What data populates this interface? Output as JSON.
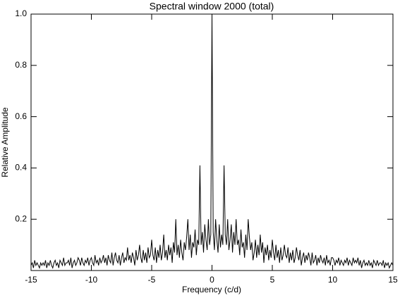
{
  "chart_data": {
    "type": "line",
    "title": "Spectral window 2000 (total)",
    "xlabel": "Frequency (c/d)",
    "ylabel": "Relative Amplitude",
    "color": "#000000",
    "xlim": [
      -15,
      15
    ],
    "ylim": [
      0,
      1
    ],
    "xticks": [
      -15,
      -10,
      -5,
      0,
      5,
      10,
      15
    ],
    "yticks": [
      0.2,
      0.4,
      0.6,
      0.8,
      {
        "value": 1,
        "label": "1.0"
      }
    ],
    "x": [
      -15,
      -14.9,
      -14.8,
      -14.7,
      -14.6,
      -14.5,
      -14.4,
      -14.3,
      -14.2,
      -14.1,
      -14,
      -13.9,
      -13.8,
      -13.7,
      -13.6,
      -13.5,
      -13.4,
      -13.3,
      -13.2,
      -13.1,
      -13,
      -12.9,
      -12.8,
      -12.7,
      -12.6,
      -12.5,
      -12.4,
      -12.3,
      -12.2,
      -12.1,
      -12,
      -11.9,
      -11.8,
      -11.7,
      -11.6,
      -11.5,
      -11.4,
      -11.3,
      -11.2,
      -11.1,
      -11,
      -10.9,
      -10.8,
      -10.7,
      -10.6,
      -10.5,
      -10.4,
      -10.3,
      -10.2,
      -10.1,
      -10,
      -9.9,
      -9.8,
      -9.7,
      -9.6,
      -9.5,
      -9.4,
      -9.3,
      -9.2,
      -9.1,
      -9,
      -8.9,
      -8.8,
      -8.7,
      -8.6,
      -8.5,
      -8.4,
      -8.3,
      -8.2,
      -8.1,
      -8,
      -7.9,
      -7.8,
      -7.7,
      -7.6,
      -7.5,
      -7.4,
      -7.3,
      -7.2,
      -7.1,
      -7,
      -6.9,
      -6.8,
      -6.7,
      -6.6,
      -6.5,
      -6.4,
      -6.3,
      -6.2,
      -6.1,
      -6,
      -5.9,
      -5.8,
      -5.7,
      -5.6,
      -5.5,
      -5.4,
      -5.3,
      -5.2,
      -5.1,
      -5,
      -4.9,
      -4.8,
      -4.7,
      -4.6,
      -4.5,
      -4.4,
      -4.3,
      -4.2,
      -4.1,
      -4,
      -3.9,
      -3.8,
      -3.7,
      -3.6,
      -3.5,
      -3.4,
      -3.3,
      -3.2,
      -3.1,
      -3,
      -2.9,
      -2.8,
      -2.7,
      -2.6,
      -2.5,
      -2.4,
      -2.3,
      -2.2,
      -2.1,
      -2,
      -1.9,
      -1.8,
      -1.7,
      -1.6,
      -1.5,
      -1.4,
      -1.3,
      -1.2,
      -1.1,
      -1,
      -0.9,
      -0.8,
      -0.7,
      -0.6,
      -0.5,
      -0.4,
      -0.3,
      -0.2,
      -0.1,
      0,
      0.1,
      0.2,
      0.3,
      0.4,
      0.5,
      0.6,
      0.7,
      0.8,
      0.9,
      1,
      1.1,
      1.2,
      1.3,
      1.4,
      1.5,
      1.6,
      1.7,
      1.8,
      1.9,
      2,
      2.1,
      2.2,
      2.3,
      2.4,
      2.5,
      2.6,
      2.7,
      2.8,
      2.9,
      3,
      3.1,
      3.2,
      3.3,
      3.4,
      3.5,
      3.6,
      3.7,
      3.8,
      3.9,
      4,
      4.1,
      4.2,
      4.3,
      4.4,
      4.5,
      4.6,
      4.7,
      4.8,
      4.9,
      5,
      5.1,
      5.2,
      5.3,
      5.4,
      5.5,
      5.6,
      5.7,
      5.8,
      5.9,
      6,
      6.1,
      6.2,
      6.3,
      6.4,
      6.5,
      6.6,
      6.7,
      6.8,
      6.9,
      7,
      7.1,
      7.2,
      7.3,
      7.4,
      7.5,
      7.6,
      7.7,
      7.8,
      7.9,
      8,
      8.1,
      8.2,
      8.3,
      8.4,
      8.5,
      8.6,
      8.7,
      8.8,
      8.9,
      9,
      9.1,
      9.2,
      9.3,
      9.4,
      9.5,
      9.6,
      9.7,
      9.8,
      9.9,
      10,
      10.1,
      10.2,
      10.3,
      10.4,
      10.5,
      10.6,
      10.7,
      10.8,
      10.9,
      11,
      11.1,
      11.2,
      11.3,
      11.4,
      11.5,
      11.6,
      11.7,
      11.8,
      11.9,
      12,
      12.1,
      12.2,
      12.3,
      12.4,
      12.5,
      12.6,
      12.7,
      12.8,
      12.9,
      13,
      13.1,
      13.2,
      13.3,
      13.4,
      13.5,
      13.6,
      13.7,
      13.8,
      13.9,
      14,
      14.1,
      14.2,
      14.3,
      14.4,
      14.5,
      14.6,
      14.7,
      14.8,
      14.9,
      15
    ],
    "values": [
      0.02,
      0.03,
      0.01,
      0.04,
      0.02,
      0.03,
      0.02,
      0.01,
      0.03,
      0.02,
      0.03,
      0.02,
      0.04,
      0.01,
      0.03,
      0.02,
      0.04,
      0.02,
      0.01,
      0.03,
      0.04,
      0.02,
      0.03,
      0.01,
      0.04,
      0.03,
      0.02,
      0.05,
      0.02,
      0.03,
      0.03,
      0.04,
      0.02,
      0.05,
      0.01,
      0.03,
      0.04,
      0.02,
      0.03,
      0.05,
      0.04,
      0.02,
      0.05,
      0.03,
      0.02,
      0.04,
      0.03,
      0.05,
      0.02,
      0.04,
      0.05,
      0.03,
      0.02,
      0.06,
      0.03,
      0.04,
      0.02,
      0.05,
      0.03,
      0.04,
      0.06,
      0.03,
      0.05,
      0.02,
      0.06,
      0.04,
      0.03,
      0.07,
      0.02,
      0.05,
      0.07,
      0.04,
      0.03,
      0.06,
      0.02,
      0.05,
      0.07,
      0.03,
      0.05,
      0.04,
      0.09,
      0.04,
      0.06,
      0.03,
      0.07,
      0.05,
      0.02,
      0.08,
      0.04,
      0.06,
      0.1,
      0.05,
      0.03,
      0.08,
      0.04,
      0.07,
      0.03,
      0.09,
      0.05,
      0.06,
      0.12,
      0.06,
      0.04,
      0.09,
      0.03,
      0.08,
      0.05,
      0.1,
      0.04,
      0.07,
      0.14,
      0.05,
      0.08,
      0.04,
      0.1,
      0.06,
      0.09,
      0.03,
      0.11,
      0.07,
      0.2,
      0.06,
      0.1,
      0.05,
      0.12,
      0.07,
      0.04,
      0.11,
      0.08,
      0.13,
      0.2,
      0.08,
      0.14,
      0.05,
      0.11,
      0.09,
      0.16,
      0.06,
      0.12,
      0.1,
      0.41,
      0.1,
      0.15,
      0.07,
      0.18,
      0.12,
      0.08,
      0.2,
      0.1,
      0.14,
      1,
      0.15,
      0.08,
      0.2,
      0.12,
      0.07,
      0.18,
      0.09,
      0.14,
      0.1,
      0.41,
      0.14,
      0.1,
      0.2,
      0.08,
      0.12,
      0.18,
      0.07,
      0.15,
      0.1,
      0.2,
      0.1,
      0.12,
      0.06,
      0.16,
      0.09,
      0.11,
      0.05,
      0.14,
      0.08,
      0.2,
      0.13,
      0.08,
      0.11,
      0.04,
      0.07,
      0.12,
      0.05,
      0.1,
      0.06,
      0.14,
      0.07,
      0.11,
      0.03,
      0.09,
      0.06,
      0.1,
      0.04,
      0.08,
      0.05,
      0.12,
      0.07,
      0.04,
      0.1,
      0.05,
      0.08,
      0.03,
      0.09,
      0.04,
      0.06,
      0.1,
      0.06,
      0.05,
      0.09,
      0.03,
      0.07,
      0.04,
      0.08,
      0.03,
      0.05,
      0.09,
      0.06,
      0.04,
      0.08,
      0.02,
      0.05,
      0.07,
      0.03,
      0.06,
      0.04,
      0.07,
      0.05,
      0.02,
      0.07,
      0.03,
      0.04,
      0.06,
      0.02,
      0.05,
      0.03,
      0.06,
      0.04,
      0.03,
      0.05,
      0.02,
      0.06,
      0.03,
      0.04,
      0.02,
      0.05,
      0.05,
      0.04,
      0.02,
      0.04,
      0.03,
      0.05,
      0.02,
      0.04,
      0.03,
      0.02,
      0.04,
      0.03,
      0.05,
      0.02,
      0.04,
      0.03,
      0.02,
      0.05,
      0.03,
      0.04,
      0.03,
      0.05,
      0.02,
      0.04,
      0.01,
      0.03,
      0.04,
      0.02,
      0.03,
      0.02,
      0.04,
      0.02,
      0.03,
      0.01,
      0.04,
      0.03,
      0.02,
      0.04,
      0.02,
      0.03,
      0.03,
      0.02,
      0.04,
      0.01,
      0.03,
      0.02,
      0.03,
      0.01,
      0.02,
      0.03,
      0.02
    ]
  }
}
